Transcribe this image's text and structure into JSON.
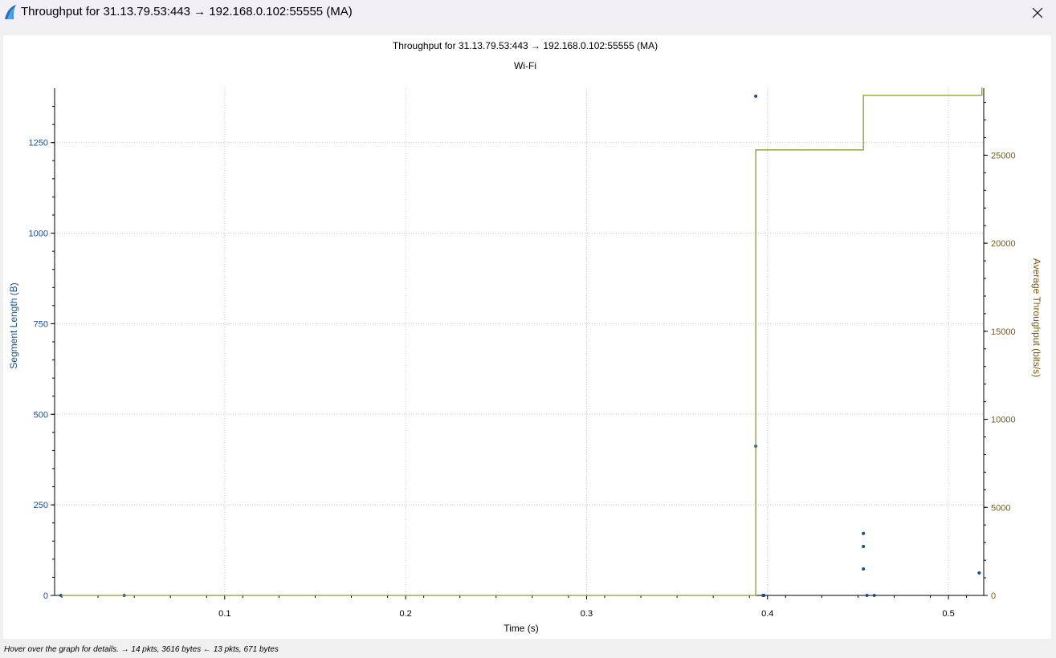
{
  "window": {
    "title": "Throughput for 31.13.79.53:443 → 192.168.0.102:55555 (MA)",
    "app_icon": "wireshark-fin-icon",
    "close_icon": "close-icon"
  },
  "status_bar": {
    "text": "Hover over the graph for details. → 14 pkts, 3616 bytes ← 13 pkts, 671 bytes"
  },
  "colors": {
    "segment_axis": "#1a4f8b",
    "throughput_axis": "#7a5a12",
    "throughput_line": "#8a9a3a",
    "segment_points": "#1a4f8b",
    "grid": "#c8c8c8"
  },
  "chart_data": {
    "type": "scatter",
    "title": "Throughput for 31.13.79.53:443 → 192.168.0.102:55555 (MA)",
    "subtitle": "Wi-Fi",
    "xlabel": "Time (s)",
    "ylabel": "Segment Length (B)",
    "y2label": "Average Throughput (bits/s)",
    "xlim": [
      0.006,
      0.5195
    ],
    "ylim": [
      0,
      1400
    ],
    "y2lim": [
      0,
      28800
    ],
    "x_ticks": [
      "0.1",
      "0.2",
      "0.3",
      "0.4",
      "0.5"
    ],
    "y_ticks": [
      "0",
      "250",
      "500",
      "750",
      "1000",
      "1250"
    ],
    "y2_ticks": [
      "0",
      "5000",
      "10000",
      "15000",
      "20000",
      "25000"
    ],
    "grid": true,
    "series": [
      {
        "name": "",
        "axis": "y",
        "style": "points",
        "x": [
          0.0095,
          0.0445,
          0.3935,
          0.3935,
          0.3975,
          0.398,
          0.453,
          0.453,
          0.453,
          0.455,
          0.459,
          0.517
        ],
        "y": [
          0,
          0,
          1378,
          412,
          0,
          0,
          171,
          135,
          73,
          0,
          0,
          62
        ]
      },
      {
        "name": "",
        "axis": "y2",
        "style": "step",
        "x": [
          0.0095,
          0.3935,
          0.453,
          0.5175,
          0.5185
        ],
        "y": [
          0,
          25300,
          28400,
          28400,
          28850
        ]
      }
    ]
  }
}
